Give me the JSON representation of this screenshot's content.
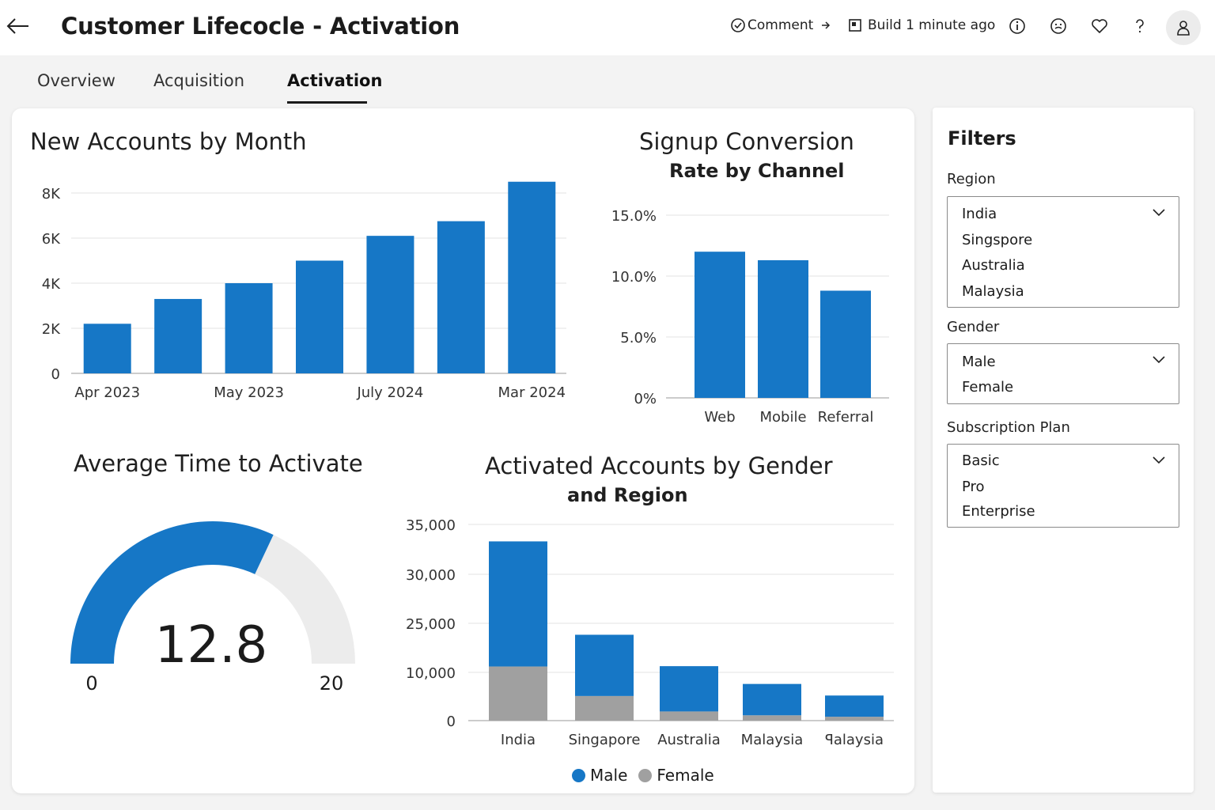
{
  "header": {
    "title": "Customer Lifecocle - Activation",
    "comment_label": "Comment",
    "build_label": "Build 1 minute ago"
  },
  "tabs": [
    {
      "label": "Overview"
    },
    {
      "label": "Acquisition"
    },
    {
      "label": "Activation"
    }
  ],
  "active_tab": "Activation",
  "filters": {
    "title": "Filters",
    "region": {
      "label": "Region",
      "options": [
        "India",
        "Singspore",
        "Australia",
        "Malaysia"
      ]
    },
    "gender": {
      "label": "Gender",
      "options": [
        "Male",
        "Female"
      ]
    },
    "plan": {
      "label": "Subscription Plan",
      "options": [
        "Basic",
        "Pro",
        "Enterprise"
      ]
    }
  },
  "colors": {
    "accent": "#1677c6",
    "secondary": "#a0a0a0",
    "gauge_track": "#ececec"
  },
  "icons": [
    "back-arrow-icon",
    "comment-check-icon",
    "arrow-right-icon",
    "build-icon",
    "info-icon",
    "feedback-icon",
    "heart-icon",
    "help-icon",
    "person-icon",
    "chevron-down-icon"
  ],
  "chart_data": [
    {
      "type": "bar",
      "title": "New Accounts by Month",
      "categories": [
        "Apr 2023",
        "",
        "May 2023",
        "",
        "July 2024",
        "",
        "Mar 2024"
      ],
      "values": [
        2200,
        3300,
        4000,
        5000,
        6100,
        6750,
        8500
      ],
      "ylim": [
        0,
        8000
      ],
      "yticks": [
        0,
        2000,
        4000,
        6000,
        8000
      ],
      "ytick_labels": [
        "0",
        "2K",
        "4K",
        "6K",
        "8K"
      ],
      "grid": true
    },
    {
      "type": "bar",
      "title": "Signup Conversion",
      "subtitle": "Rate by Channel",
      "categories": [
        "Web",
        "Mobile",
        "Referral"
      ],
      "values": [
        12.0,
        11.3,
        8.8
      ],
      "ylim": [
        0,
        15
      ],
      "yticks": [
        0,
        5,
        10,
        15
      ],
      "ytick_labels": [
        "0%",
        "5.0%",
        "10.0%",
        "15.0%"
      ],
      "grid": true
    },
    {
      "type": "gauge",
      "title": "Average Time to Activate",
      "value": 12.8,
      "value_label": "12.8",
      "min": 0,
      "max": 20,
      "min_label": "0",
      "max_label": "20"
    },
    {
      "type": "bar",
      "stacked": true,
      "title": "Activated Accounts by Gender",
      "subtitle": "and Region",
      "categories": [
        "India",
        "Singapore",
        "Australia",
        "Malaysia",
        "ꟼalaysia"
      ],
      "series": [
        {
          "name": "Male",
          "values": [
            21500,
            16400,
            10000,
            6500,
            4400
          ]
        },
        {
          "name": "Female",
          "values": [
            11800,
            5100,
            1900,
            1100,
            800
          ]
        }
      ],
      "yticks": [
        0,
        10000,
        25000,
        30000,
        35000
      ],
      "ytick_labels": [
        "0",
        "10,000",
        "25,000",
        "30,000",
        "35,000"
      ],
      "grid": true,
      "legend": "bottom"
    }
  ]
}
